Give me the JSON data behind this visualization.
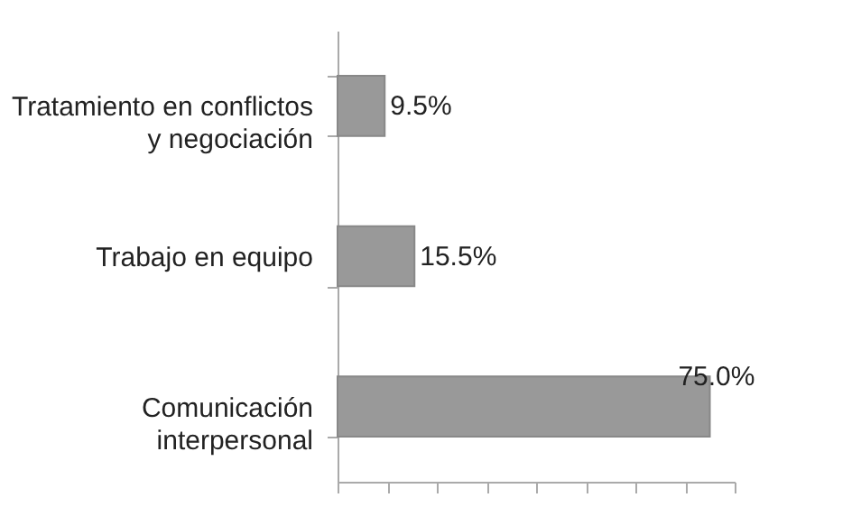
{
  "chart_data": {
    "type": "bar",
    "orientation": "horizontal",
    "categories": [
      "Tratamiento en conflictos\ny negociación",
      "Trabajo en equipo",
      "Comunicación\ninterpersonal"
    ],
    "values": [
      9.5,
      15.5,
      75.0
    ],
    "value_labels": [
      "9.5%",
      "15.5%",
      "75.0%"
    ],
    "color": "#999999",
    "xlim": [
      0,
      80
    ],
    "tick_labels": "y",
    "grid": false
  }
}
